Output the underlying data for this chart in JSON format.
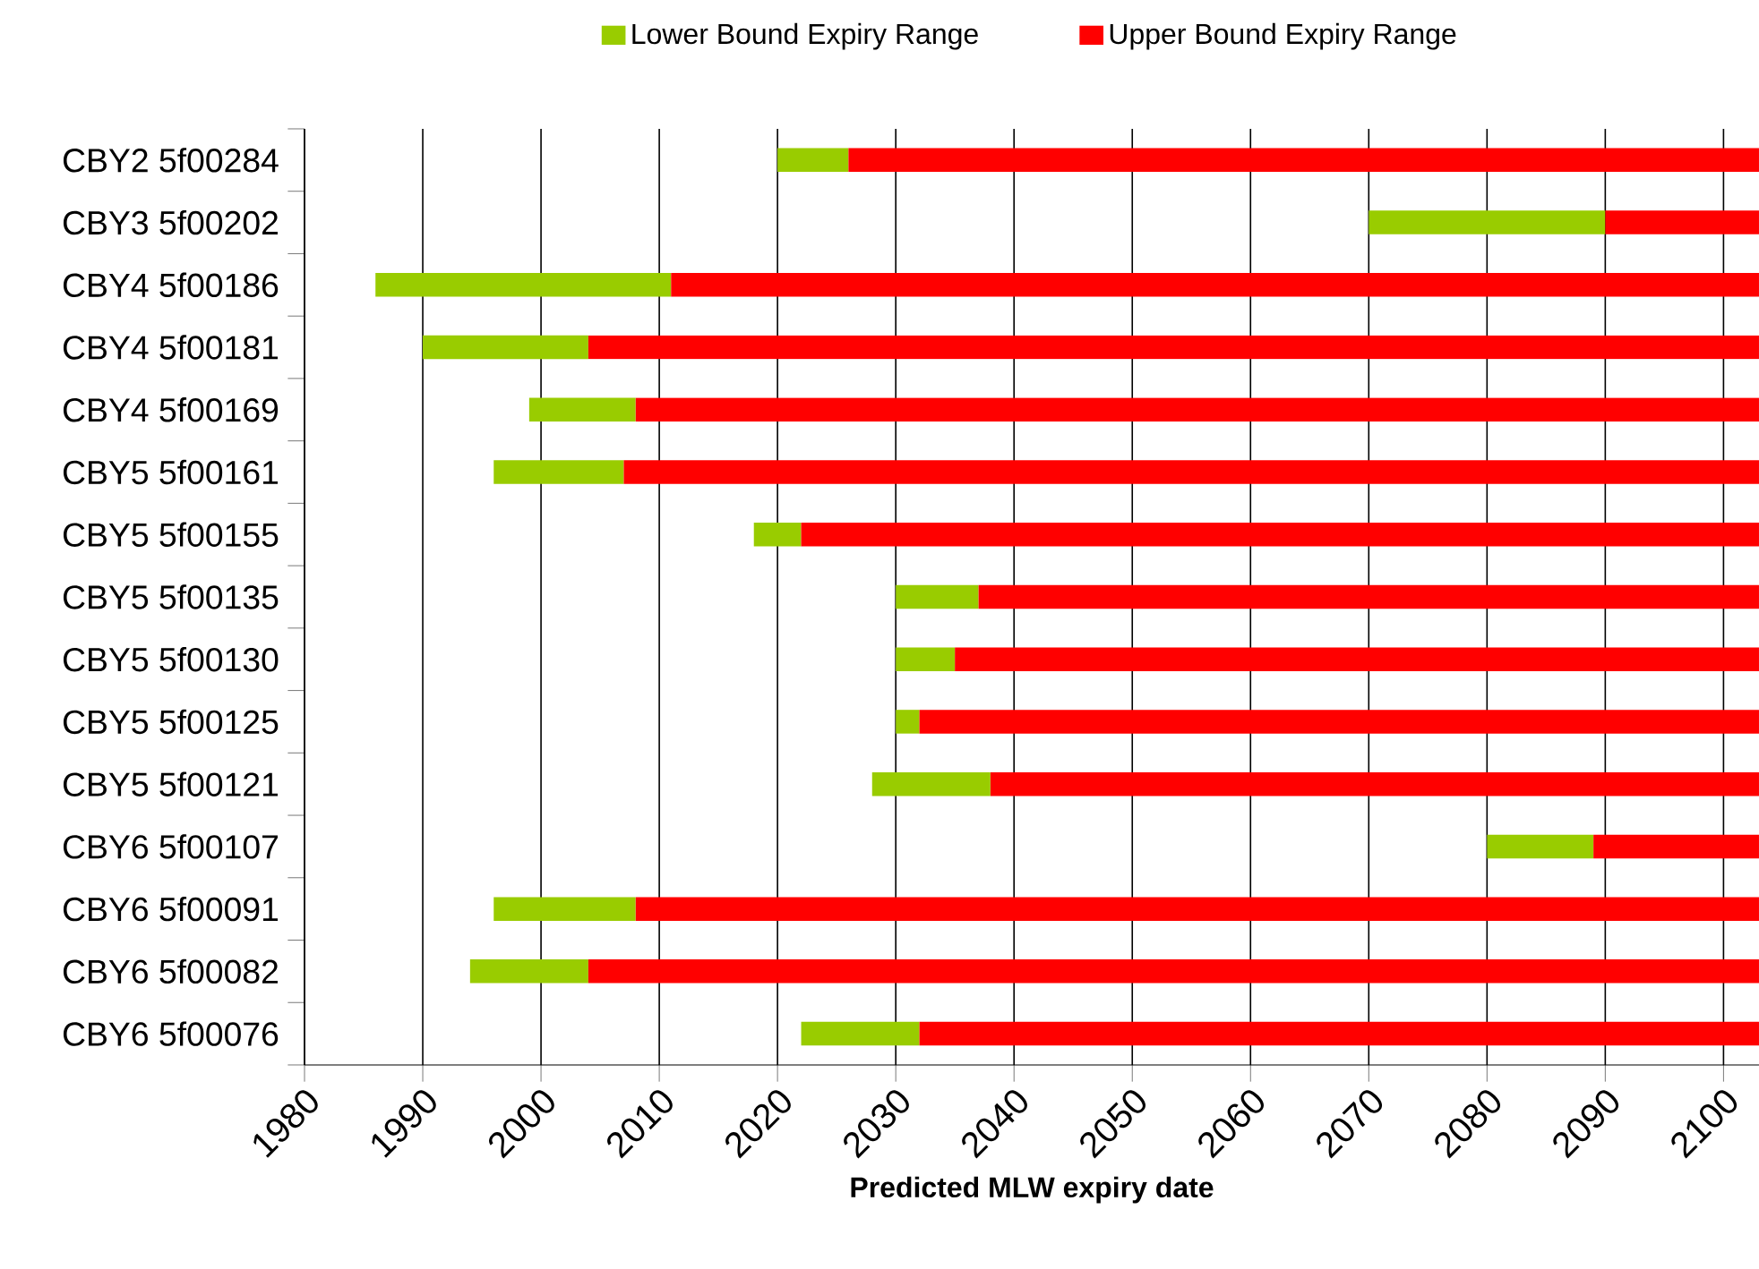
{
  "chart_data": {
    "type": "bar",
    "orientation": "horizontal",
    "xlabel": "Predicted MLW expiry date",
    "categories": [
      "CBY2 5f00284",
      "CBY3 5f00202",
      "CBY4 5f00186",
      "CBY4 5f00181",
      "CBY4 5f00169",
      "CBY5 5f00161",
      "CBY5 5f00155",
      "CBY5 5f00135",
      "CBY5 5f00130",
      "CBY5 5f00125",
      "CBY5 5f00121",
      "CBY6 5f00107",
      "CBY6 5f00091",
      "CBY6 5f00082",
      "CBY6 5f00076"
    ],
    "series": [
      {
        "name": "Lower Bound Expiry Range",
        "color": "#99cc00",
        "base": [
          2020,
          2070,
          1986,
          1990,
          1999,
          1996,
          2018,
          2030,
          2030,
          2030,
          2028,
          2080,
          1996,
          1994,
          2022
        ],
        "values": [
          6,
          20,
          25,
          14,
          9,
          11,
          4,
          7,
          5,
          2,
          10,
          9,
          12,
          10,
          10
        ]
      },
      {
        "name": "Upper Bound Expiry Range",
        "color": "#ff0000",
        "base": [
          2026,
          2090,
          2011,
          2004,
          2008,
          2007,
          2022,
          2037,
          2035,
          2032,
          2038,
          2089,
          2008,
          2004,
          2032
        ],
        "values": [
          77,
          13,
          92,
          99,
          95,
          96,
          81,
          66,
          68,
          71,
          65,
          14,
          95,
          99,
          71
        ]
      }
    ],
    "xlim": [
      1980,
      2103
    ],
    "xticks": [
      1980,
      1990,
      2000,
      2010,
      2020,
      2030,
      2040,
      2050,
      2060,
      2070,
      2080,
      2090,
      2100
    ],
    "grid": "x",
    "legend": "top"
  }
}
